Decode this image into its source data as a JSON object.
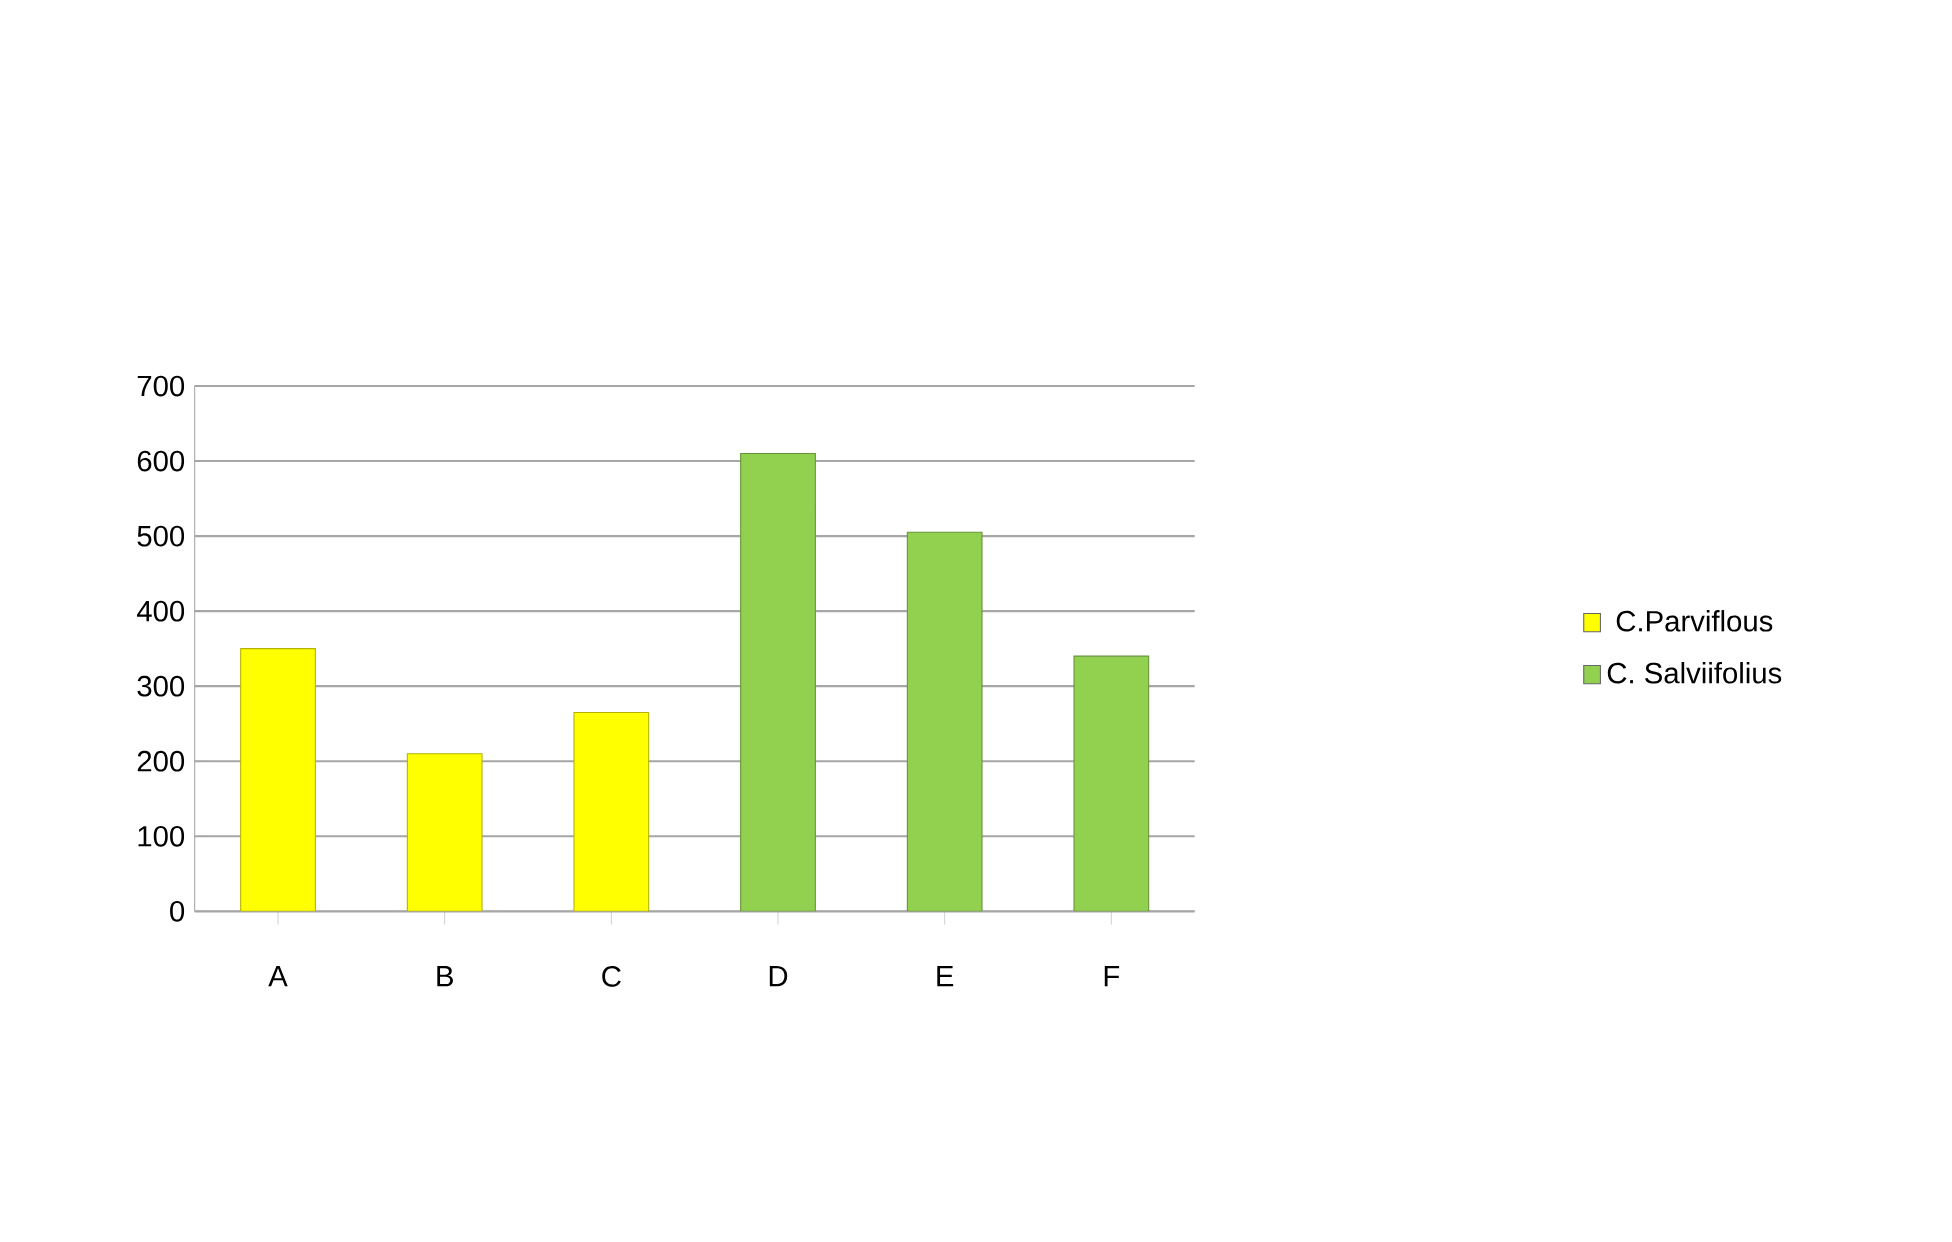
{
  "chart_data": {
    "type": "bar",
    "categories": [
      "A",
      "B",
      "C",
      "D",
      "E",
      "F"
    ],
    "series": [
      {
        "name": "C.Parviflous",
        "color": "#ffff00",
        "values": [
          350,
          210,
          265,
          null,
          null,
          null
        ]
      },
      {
        "name": "C. Salviifolius",
        "color": "#92d050",
        "values": [
          null,
          null,
          null,
          610,
          505,
          340
        ]
      }
    ],
    "ylim": [
      0,
      700
    ],
    "yticks": [
      0,
      100,
      200,
      300,
      400,
      500,
      600,
      700
    ],
    "grid": "y",
    "legend": "right"
  }
}
